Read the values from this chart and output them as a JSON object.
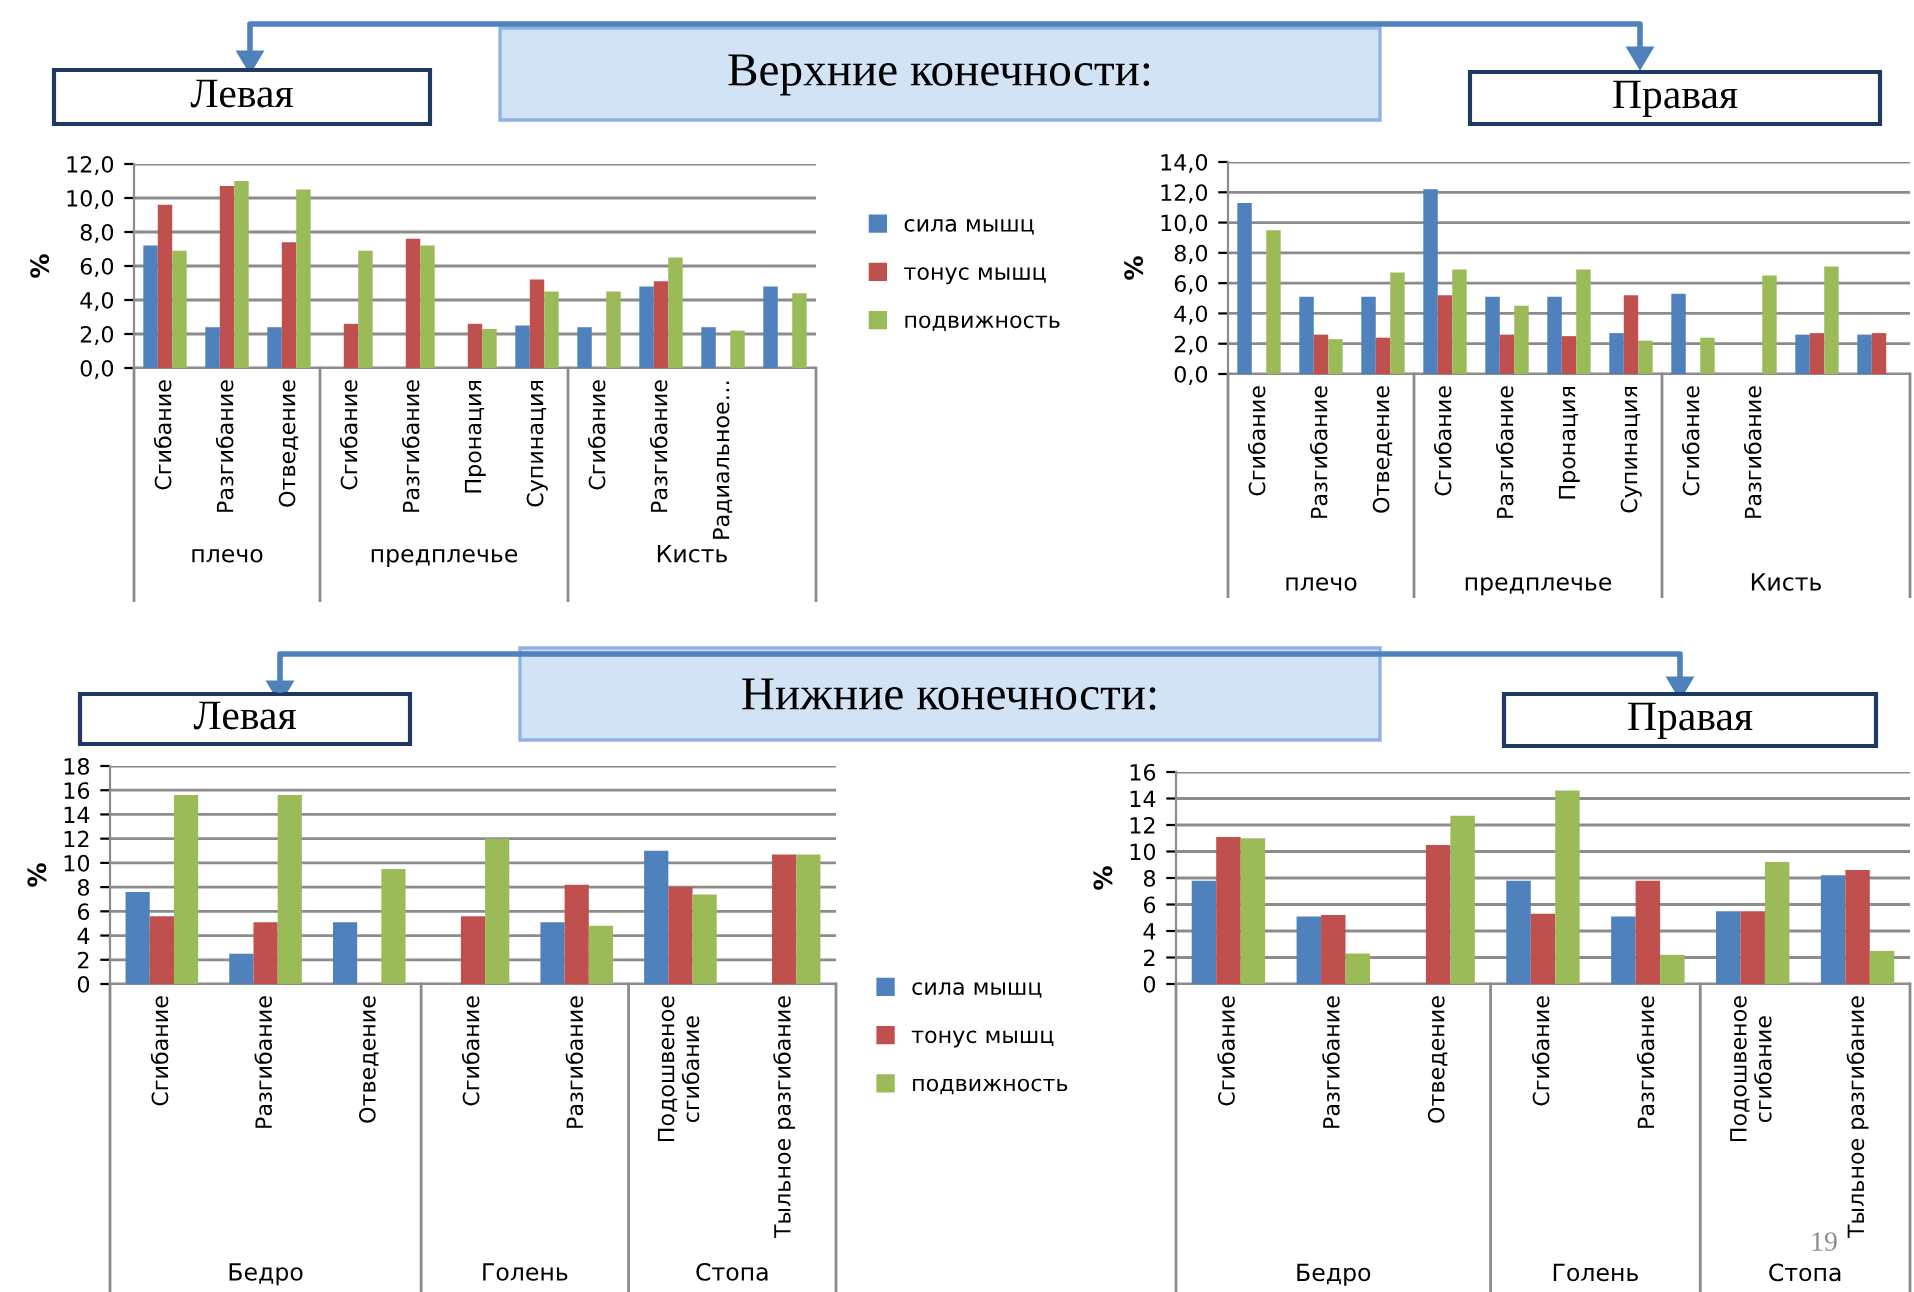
{
  "chart_data": [
    {
      "type": "bar",
      "title": "Левая",
      "ylabel": "%",
      "categories": [
        "Сгибание",
        "Разгибание",
        "Отведение",
        "Сгибание",
        "Разгибание",
        "Пронация",
        "Супинация",
        "Сгибание",
        "Разгибание",
        "Радиальное…",
        null
      ],
      "series": [
        {
          "name": "сила мышц",
          "color": "#4f81bd",
          "values": [
            7.2,
            2.4,
            2.4,
            null,
            null,
            null,
            2.5,
            2.4,
            4.8,
            2.4,
            4.8
          ]
        },
        {
          "name": "тонус мышц",
          "color": "#c0504d",
          "values": [
            9.6,
            10.7,
            7.4,
            2.6,
            7.6,
            2.6,
            5.2,
            null,
            5.1,
            null,
            null
          ]
        },
        {
          "name": "подвижность",
          "color": "#9bbb59",
          "values": [
            6.9,
            11.0,
            10.5,
            6.9,
            7.2,
            2.3,
            4.5,
            4.5,
            6.5,
            2.2,
            4.4
          ]
        }
      ],
      "ylim": [
        0,
        12
      ],
      "yticks": [
        {
          "value": 0,
          "label": "0,0"
        },
        {
          "value": 2,
          "label": "2,0"
        },
        {
          "value": 4,
          "label": "4,0"
        },
        {
          "value": 6,
          "label": "6,0"
        },
        {
          "value": 8,
          "label": "8,0"
        },
        {
          "value": 10,
          "label": "10,0"
        },
        {
          "value": 12,
          "label": "12,0"
        }
      ],
      "grid": "y",
      "legend": "right",
      "annotations": [
        "плечо",
        "предплечье",
        "Кисть",
        "Верхние конечности:"
      ]
    },
    {
      "type": "bar",
      "title": "Правая",
      "ylabel": "%",
      "categories": [
        "Сгибание",
        "Разгибание",
        "Отведение",
        "Сгибание",
        "Разгибание",
        "Пронация",
        "Супинация",
        "Сгибание",
        "Разгибание",
        null,
        null
      ],
      "series": [
        {
          "color": "#4f81bd",
          "values": [
            11.3,
            5.1,
            5.1,
            12.2,
            5.1,
            5.1,
            2.7,
            5.3,
            null,
            2.6,
            2.6
          ]
        },
        {
          "color": "#c0504d",
          "values": [
            null,
            2.6,
            2.4,
            5.2,
            2.6,
            2.5,
            5.2,
            null,
            null,
            2.7,
            2.7
          ]
        },
        {
          "color": "#9bbb59",
          "values": [
            9.5,
            2.3,
            6.7,
            6.9,
            4.5,
            6.9,
            2.2,
            2.4,
            6.5,
            7.1,
            null
          ]
        }
      ],
      "ylim": [
        0,
        14
      ],
      "yticks": [
        {
          "value": 0,
          "label": "0,0"
        },
        {
          "value": 2,
          "label": "2,0"
        },
        {
          "value": 4,
          "label": "4,0"
        },
        {
          "value": 6,
          "label": "6,0"
        },
        {
          "value": 8,
          "label": "8,0"
        },
        {
          "value": 10,
          "label": "10,0"
        },
        {
          "value": 12,
          "label": "12,0"
        },
        {
          "value": 14,
          "label": "14,0"
        }
      ],
      "grid": "y",
      "annotations": [
        "плечо",
        "предплечье",
        "Кисть"
      ]
    },
    {
      "type": "bar",
      "title": "Левая",
      "ylabel": "%",
      "categories": [
        "Сгибание",
        "Разгибание",
        "Отведение",
        "Сгибание",
        "Разгибание",
        "Подошвеное\nсгибание",
        "Тыльное разгибание"
      ],
      "series": [
        {
          "name": "сила мышц",
          "color": "#4f81bd",
          "values": [
            7.6,
            2.5,
            5.1,
            null,
            5.1,
            11.0,
            null
          ]
        },
        {
          "name": "тонус мышц",
          "color": "#c0504d",
          "values": [
            5.6,
            5.1,
            null,
            5.6,
            8.2,
            8.0,
            10.7
          ]
        },
        {
          "name": "подвижность",
          "color": "#9bbb59",
          "values": [
            15.6,
            15.6,
            9.5,
            12.0,
            4.8,
            7.4,
            10.7
          ]
        }
      ],
      "ylim": [
        0,
        18
      ],
      "yticks": [
        0,
        2,
        4,
        6,
        8,
        10,
        12,
        14,
        16,
        18
      ],
      "grid": "y",
      "legend": "right",
      "annotations": [
        "Бедро",
        "Голень",
        "Стопа",
        "Нижние конечности:"
      ]
    },
    {
      "type": "bar",
      "title": "Правая",
      "ylabel": "%",
      "categories": [
        "Сгибание",
        "Разгибание",
        "Отведение",
        "Сгибание",
        "Разгибание",
        "Подошвеное\nсгибание",
        "Тыльное разгибание"
      ],
      "series": [
        {
          "color": "#4f81bd",
          "values": [
            7.8,
            5.1,
            null,
            7.8,
            5.1,
            5.5,
            8.2
          ]
        },
        {
          "color": "#c0504d",
          "values": [
            11.1,
            5.2,
            10.5,
            5.3,
            7.8,
            5.5,
            8.6
          ]
        },
        {
          "color": "#9bbb59",
          "values": [
            11.0,
            2.3,
            12.7,
            14.6,
            2.2,
            9.2,
            2.5
          ]
        }
      ],
      "ylim": [
        0,
        16
      ],
      "yticks": [
        0,
        2,
        4,
        6,
        8,
        10,
        12,
        14,
        16
      ],
      "grid": "y",
      "annotations": [
        "Бедро",
        "Голень",
        "Стопа",
        "19"
      ]
    }
  ]
}
